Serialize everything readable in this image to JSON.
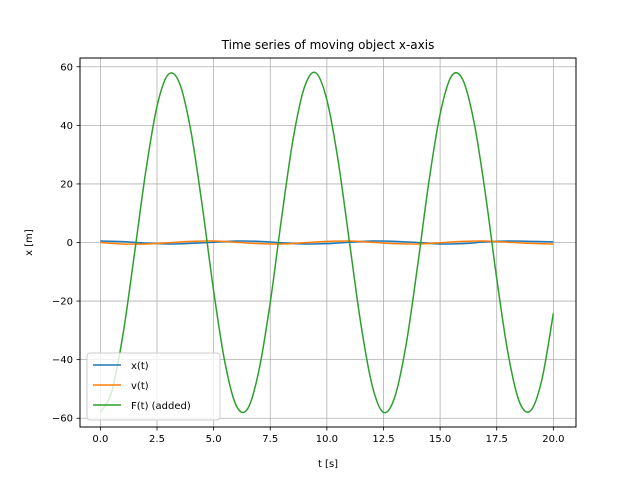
{
  "chart_data": {
    "type": "line",
    "title": "Time series of moving object x-axis",
    "xlabel": "t [s]",
    "ylabel": "x [m]",
    "xlim": [
      -0.9,
      21.0
    ],
    "ylim": [
      -63.0,
      63.0
    ],
    "xticks": [
      0.0,
      2.5,
      5.0,
      7.5,
      10.0,
      12.5,
      15.0,
      17.5,
      20.0
    ],
    "xtick_labels": [
      "0.0",
      "2.5",
      "5.0",
      "7.5",
      "10.0",
      "12.5",
      "15.0",
      "17.5",
      "20.0"
    ],
    "yticks": [
      -60,
      -40,
      -20,
      0,
      20,
      40,
      60
    ],
    "ytick_labels": [
      "−60",
      "−40",
      "−20",
      "0",
      "20",
      "40",
      "60"
    ],
    "grid": true,
    "legend_position": "lower-left",
    "series": [
      {
        "name": "x(t)",
        "color": "#1f77b4",
        "x": [
          0.0,
          1.0,
          2.0,
          3.0,
          4.0,
          5.0,
          6.0,
          7.0,
          8.0,
          9.0,
          10.0,
          11.0,
          12.0,
          13.0,
          14.0,
          15.0,
          16.0,
          17.0,
          18.0,
          19.0,
          20.0
        ],
        "y": [
          0.5,
          0.3,
          -0.2,
          -0.5,
          -0.3,
          0.1,
          0.5,
          0.4,
          -0.1,
          -0.5,
          -0.4,
          0.1,
          0.5,
          0.4,
          0.0,
          -0.5,
          -0.4,
          0.2,
          0.5,
          0.4,
          0.2
        ]
      },
      {
        "name": "v(t)",
        "color": "#ff7f0e",
        "x": [
          0.0,
          1.0,
          2.0,
          3.0,
          4.0,
          5.0,
          6.0,
          7.0,
          8.0,
          9.0,
          10.0,
          11.0,
          12.0,
          13.0,
          14.0,
          15.0,
          16.0,
          17.0,
          18.0,
          19.0,
          20.0
        ],
        "y": [
          0.0,
          -0.5,
          -0.5,
          -0.1,
          0.4,
          0.5,
          0.1,
          -0.4,
          -0.5,
          -0.1,
          0.4,
          0.5,
          0.1,
          -0.4,
          -0.5,
          -0.1,
          0.4,
          0.5,
          0.1,
          -0.3,
          -0.5
        ]
      },
      {
        "name": "F(t) (added)",
        "color": "#2ca02c",
        "x": [
          0.0,
          0.5,
          1.0,
          1.5,
          2.0,
          2.5,
          3.0,
          3.5,
          4.0,
          4.5,
          5.0,
          5.5,
          6.0,
          6.5,
          7.0,
          7.5,
          8.0,
          8.5,
          9.0,
          9.5,
          10.0,
          10.5,
          11.0,
          11.5,
          12.0,
          12.5,
          13.0,
          13.5,
          14.0,
          14.5,
          15.0,
          15.5,
          16.0,
          16.5,
          17.0,
          17.5,
          18.0,
          18.5,
          19.0,
          19.5,
          20.0
        ],
        "y": [
          -58.0,
          -50.9,
          -31.3,
          -4.1,
          24.1,
          46.5,
          57.4,
          54.3,
          37.9,
          12.4,
          -16.5,
          -41.0,
          -55.7,
          -56.8,
          -43.7,
          -20.5,
          8.3,
          34.9,
          52.8,
          58.0,
          48.7,
          27.8,
          0.0,
          -27.8,
          -48.8,
          -58.0,
          -52.7,
          -34.8,
          -8.3,
          20.5,
          43.8,
          56.8,
          55.6,
          41.0,
          16.6,
          -12.3,
          -37.9,
          -54.4,
          -57.4,
          -46.6,
          -24.2
        ]
      }
    ]
  }
}
